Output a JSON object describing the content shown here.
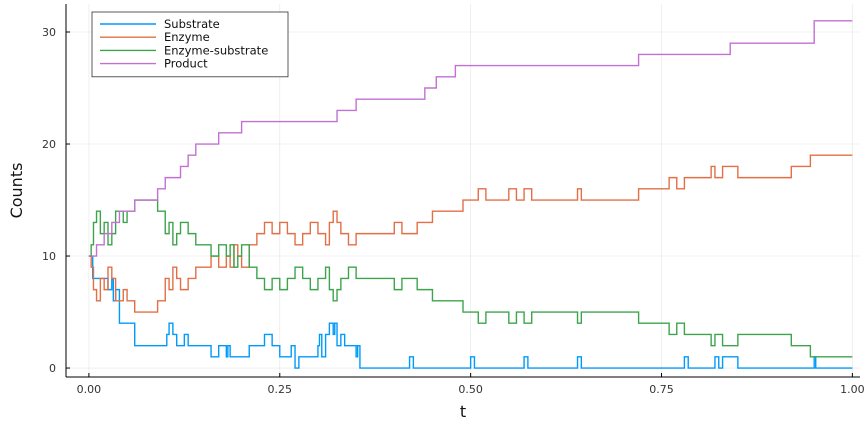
{
  "chart_data": {
    "type": "line",
    "step": true,
    "title": "",
    "xlabel": "t",
    "ylabel": "Counts",
    "xlim": [
      -0.03,
      1.01
    ],
    "ylim": [
      -0.8,
      32.5
    ],
    "xticks": [
      0.0,
      0.25,
      0.5,
      0.75,
      1.0
    ],
    "xtick_labels": [
      "0.00",
      "0.25",
      "0.50",
      "0.75",
      "1.00"
    ],
    "yticks": [
      0,
      10,
      20,
      30
    ],
    "ytick_labels": [
      "0",
      "10",
      "20",
      "30"
    ],
    "grid": true,
    "legend_position": "top-left",
    "series": [
      {
        "name": "Substrate",
        "color": "#009AFA",
        "x": [
          0.0,
          0.005,
          0.02,
          0.025,
          0.03,
          0.032,
          0.035,
          0.04,
          0.055,
          0.06,
          0.1,
          0.102,
          0.105,
          0.11,
          0.115,
          0.125,
          0.13,
          0.16,
          0.17,
          0.18,
          0.182,
          0.185,
          0.19,
          0.21,
          0.215,
          0.23,
          0.24,
          0.25,
          0.265,
          0.27,
          0.275,
          0.28,
          0.3,
          0.302,
          0.305,
          0.31,
          0.315,
          0.32,
          0.322,
          0.325,
          0.33,
          0.335,
          0.35,
          0.352,
          0.355,
          0.36,
          0.42,
          0.425,
          0.5,
          0.505,
          0.57,
          0.575,
          0.64,
          0.645,
          0.78,
          0.785,
          0.82,
          0.822,
          0.825,
          0.83,
          0.85,
          0.855,
          0.95,
          0.952,
          0.955,
          1.0
        ],
        "y": [
          10,
          8,
          8,
          7,
          8,
          6,
          7,
          4,
          4,
          2,
          2,
          3,
          4,
          3,
          2,
          3,
          2,
          1,
          2,
          1,
          2,
          1,
          1,
          2,
          2,
          3,
          2,
          1,
          2,
          0,
          1,
          1,
          2,
          3,
          1,
          3,
          4,
          3,
          4,
          2,
          3,
          2,
          1,
          2,
          0,
          0,
          1,
          0,
          1,
          0,
          1,
          0,
          1,
          0,
          1,
          0,
          1,
          1,
          0,
          1,
          0,
          0,
          1,
          0,
          0,
          0
        ]
      },
      {
        "name": "Enzyme",
        "color": "#E26F46",
        "x": [
          0.0,
          0.003,
          0.006,
          0.01,
          0.015,
          0.02,
          0.025,
          0.03,
          0.035,
          0.045,
          0.05,
          0.055,
          0.06,
          0.085,
          0.09,
          0.1,
          0.105,
          0.11,
          0.115,
          0.12,
          0.13,
          0.14,
          0.15,
          0.16,
          0.17,
          0.18,
          0.185,
          0.19,
          0.195,
          0.2,
          0.21,
          0.22,
          0.23,
          0.24,
          0.25,
          0.26,
          0.27,
          0.28,
          0.29,
          0.3,
          0.31,
          0.315,
          0.32,
          0.325,
          0.33,
          0.34,
          0.35,
          0.4,
          0.41,
          0.42,
          0.43,
          0.45,
          0.47,
          0.49,
          0.51,
          0.52,
          0.55,
          0.56,
          0.57,
          0.58,
          0.62,
          0.64,
          0.645,
          0.72,
          0.73,
          0.76,
          0.77,
          0.78,
          0.8,
          0.815,
          0.82,
          0.83,
          0.84,
          0.85,
          0.86,
          0.92,
          0.94,
          0.945,
          0.95,
          1.0
        ],
        "y": [
          10,
          9,
          7,
          6,
          8,
          7,
          9,
          8,
          6,
          7,
          6,
          6,
          5,
          5,
          6,
          8,
          7,
          9,
          8,
          7,
          8,
          9,
          9,
          10,
          9,
          10,
          9,
          11,
          10,
          9,
          11,
          12,
          13,
          12,
          13,
          12,
          11,
          12,
          13,
          12,
          11,
          13,
          14,
          13,
          12,
          11,
          12,
          13,
          12,
          12,
          13,
          14,
          14,
          15,
          16,
          15,
          16,
          15,
          16,
          15,
          15,
          16,
          15,
          16,
          16,
          17,
          16,
          17,
          17,
          18,
          17,
          18,
          18,
          17,
          17,
          18,
          18,
          19,
          19,
          19
        ]
      },
      {
        "name": "Enzyme-substrate",
        "color": "#3DA44D",
        "x": [
          0.0,
          0.003,
          0.006,
          0.01,
          0.015,
          0.02,
          0.025,
          0.03,
          0.035,
          0.045,
          0.05,
          0.055,
          0.06,
          0.085,
          0.09,
          0.1,
          0.105,
          0.11,
          0.115,
          0.12,
          0.13,
          0.14,
          0.15,
          0.16,
          0.17,
          0.18,
          0.185,
          0.19,
          0.195,
          0.2,
          0.21,
          0.22,
          0.23,
          0.24,
          0.25,
          0.26,
          0.27,
          0.28,
          0.29,
          0.3,
          0.31,
          0.315,
          0.32,
          0.325,
          0.33,
          0.34,
          0.35,
          0.4,
          0.41,
          0.42,
          0.43,
          0.45,
          0.47,
          0.49,
          0.51,
          0.52,
          0.55,
          0.56,
          0.57,
          0.58,
          0.62,
          0.64,
          0.645,
          0.72,
          0.73,
          0.76,
          0.77,
          0.78,
          0.8,
          0.815,
          0.82,
          0.83,
          0.84,
          0.85,
          0.86,
          0.92,
          0.94,
          0.945,
          0.95,
          1.0
        ],
        "y": [
          10,
          11,
          13,
          14,
          12,
          13,
          11,
          12,
          14,
          13,
          14,
          14,
          15,
          15,
          14,
          12,
          13,
          11,
          12,
          13,
          12,
          11,
          11,
          10,
          11,
          10,
          11,
          9,
          10,
          11,
          9,
          8,
          7,
          8,
          7,
          8,
          9,
          8,
          7,
          8,
          9,
          7,
          6,
          7,
          8,
          9,
          8,
          7,
          8,
          8,
          7,
          6,
          6,
          5,
          4,
          5,
          4,
          5,
          4,
          5,
          5,
          4,
          5,
          4,
          4,
          3,
          4,
          3,
          3,
          2,
          3,
          2,
          2,
          3,
          3,
          2,
          2,
          1,
          1,
          1
        ]
      },
      {
        "name": "Product",
        "color": "#C271D2",
        "x": [
          0.0,
          0.01,
          0.02,
          0.03,
          0.04,
          0.05,
          0.06,
          0.09,
          0.1,
          0.12,
          0.13,
          0.14,
          0.16,
          0.17,
          0.19,
          0.2,
          0.215,
          0.27,
          0.3,
          0.325,
          0.35,
          0.38,
          0.44,
          0.455,
          0.48,
          0.64,
          0.72,
          0.77,
          0.84,
          0.95,
          1.0
        ],
        "y": [
          10,
          11,
          12,
          13,
          14,
          14,
          15,
          16,
          17,
          18,
          19,
          20,
          20,
          21,
          21,
          22,
          22,
          22,
          22,
          23,
          24,
          24,
          25,
          26,
          27,
          27,
          28,
          28,
          29,
          31,
          31
        ]
      }
    ]
  }
}
